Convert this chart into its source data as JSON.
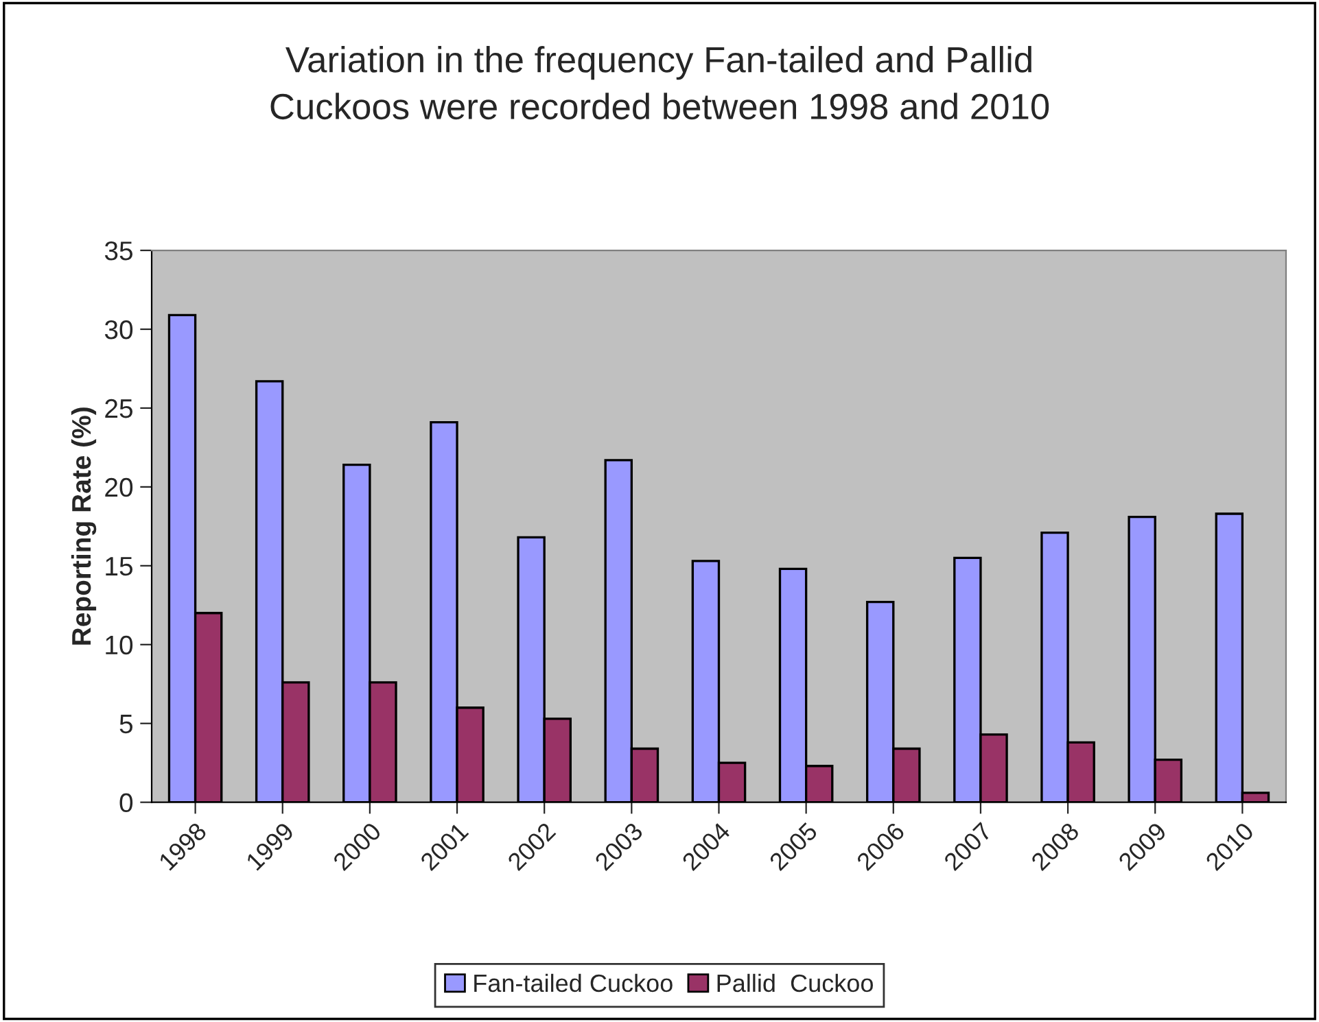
{
  "chart_data": {
    "type": "bar",
    "title": "Variation in the frequency Fan-tailed and Pallid\nCuckoos were recorded between 1998 and 2010",
    "ylabel": "Reporting Rate (%)",
    "categories": [
      "1998",
      "1999",
      "2000",
      "2001",
      "2002",
      "2003",
      "2004",
      "2005",
      "2006",
      "2007",
      "2008",
      "2009",
      "2010"
    ],
    "series": [
      {
        "name": "Fan-tailed Cuckoo",
        "color": "#9999ff",
        "values": [
          30.9,
          26.7,
          21.4,
          24.1,
          16.8,
          21.7,
          15.3,
          14.8,
          12.7,
          15.5,
          17.1,
          18.1,
          18.3
        ]
      },
      {
        "name": "Pallid  Cuckoo",
        "color": "#993366",
        "values": [
          12.0,
          7.6,
          7.6,
          6.0,
          5.3,
          3.4,
          2.5,
          2.3,
          3.4,
          4.3,
          3.8,
          2.7,
          0.6
        ]
      }
    ],
    "ylim": [
      0,
      35
    ],
    "yticks": [
      0,
      5,
      10,
      15,
      20,
      25,
      30,
      35
    ],
    "grid": false,
    "legend": "bottom"
  }
}
